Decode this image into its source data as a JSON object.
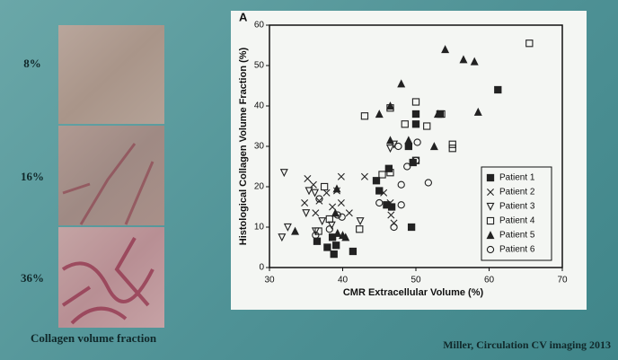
{
  "panel_labels": [
    "8%",
    "16%",
    "36%"
  ],
  "images_caption": "Collagen volume fraction",
  "citation": "Miller, Circulation CV imaging 2013",
  "chart_data": {
    "type": "scatter",
    "panel_label": "A",
    "x_label": "CMR Extracellular Volume (%)",
    "y_label": "Histological Collagen Volume Fraction (%)",
    "xlim": [
      30,
      70
    ],
    "xticks": [
      30,
      40,
      50,
      60,
      70
    ],
    "ylim": [
      0,
      60
    ],
    "yticks": [
      0,
      10,
      20,
      30,
      40,
      50,
      60
    ],
    "legend": "lower right",
    "series": [
      {
        "name": "Patient 1",
        "color": "#222222",
        "marker": "square-filled",
        "x": [
          61.2,
          53.3,
          50,
          50,
          49,
          49.6,
          46.3,
          45,
          44.6,
          46,
          46.7,
          49.4,
          38.6,
          36.5,
          37.9,
          39.1,
          41.4,
          38.8
        ],
        "y": [
          44,
          38,
          38,
          35.5,
          30,
          26,
          24.5,
          19,
          21.5,
          15.5,
          15,
          10,
          7.5,
          6.5,
          5,
          5.5,
          4,
          3.3
        ]
      },
      {
        "name": "Patient 2",
        "color": "#222222",
        "marker": "cross",
        "x": [
          35.2,
          36,
          39.8,
          37.8,
          39.2,
          34.8,
          36.8,
          38.6,
          39.8,
          40.9,
          43,
          45.6,
          46.5,
          46.6,
          47,
          36.3
        ],
        "y": [
          22,
          20.5,
          22.5,
          18.5,
          19,
          16,
          16.5,
          15,
          16,
          13.5,
          22.5,
          18.5,
          16,
          13,
          11,
          13.5
        ]
      },
      {
        "name": "Patient 3",
        "color": "#222222",
        "marker": "triangle-down-open",
        "x": [
          32,
          35.4,
          36.2,
          35,
          32.5,
          31.7,
          38.5,
          42.4,
          37.2,
          36.3,
          47,
          46.5
        ],
        "y": [
          23.5,
          19,
          18.5,
          13.5,
          10,
          7.5,
          10.5,
          11.5,
          11.5,
          9,
          30.5,
          29.5
        ]
      },
      {
        "name": "Patient 4",
        "color": "#222222",
        "marker": "square-open",
        "x": [
          65.5,
          50,
          53.5,
          46.5,
          43,
          48.5,
          51.5,
          55,
          55,
          50,
          45.4,
          46.5,
          37.5,
          42.3,
          38.2,
          36.7
        ],
        "y": [
          55.5,
          41,
          38,
          39.5,
          37.5,
          35.5,
          35,
          30.5,
          29.5,
          26.5,
          23,
          23.5,
          20,
          9.5,
          12,
          9
        ]
      },
      {
        "name": "Patient 5",
        "color": "#222222",
        "marker": "triangle-filled",
        "x": [
          54,
          56.5,
          58,
          48,
          46.5,
          45,
          58.5,
          53,
          49,
          46.5,
          52.5,
          39.2,
          39,
          33.5,
          39.3,
          40,
          40.4
        ],
        "y": [
          54,
          51.5,
          51,
          45.5,
          40,
          38,
          38.5,
          38,
          31.5,
          31.5,
          30,
          19.5,
          13.5,
          9,
          8.5,
          8,
          7.5
        ]
      },
      {
        "name": "Patient 6",
        "color": "#222222",
        "marker": "circle-open",
        "x": [
          50.2,
          47.6,
          48.8,
          50,
          48,
          51.7,
          48,
          47,
          45,
          36.8,
          39.9,
          39.3,
          38.2,
          36.3
        ],
        "y": [
          31,
          30,
          25,
          26.5,
          20.5,
          21,
          15.5,
          10,
          16,
          17,
          12.5,
          13,
          9.5,
          8
        ]
      }
    ]
  }
}
